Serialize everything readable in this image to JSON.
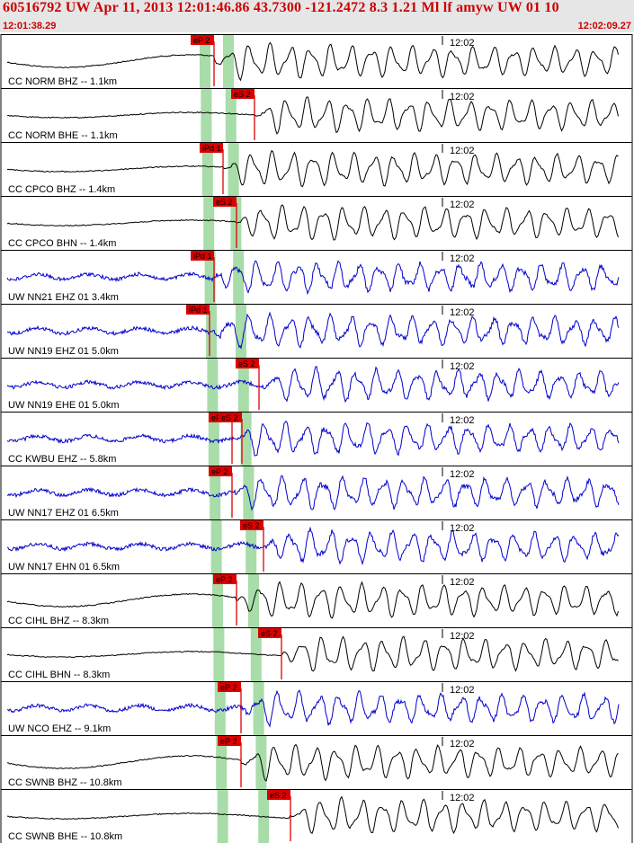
{
  "header": {
    "title": "60516792 UW Apr 11, 2013 12:01:46.86   43.7300 -121.2472  8.3 1.21 Ml lf amyw UW 01  10",
    "time_start": "12:01:38.29",
    "time_end": "12:02:09.27"
  },
  "colors": {
    "header_bg": "#e6e6e6",
    "header_text": "#cc0000",
    "trace_black": "#000000",
    "trace_blue": "#0000cc",
    "pick": "#dd0000",
    "window": "#a8dca8"
  },
  "chart_data": {
    "type": "line",
    "title": "60516792 UW Apr 11, 2013 12:01:46.86",
    "x_range": [
      "12:01:38.29",
      "12:02:09.27"
    ],
    "minute_mark": "12:02",
    "traces": [
      {
        "label": "CC NORM BHZ -- 1.1km",
        "color": "black",
        "amp": 0.45,
        "picks": [
          {
            "label": "eP 2",
            "t": 2.1
          }
        ],
        "onset": 2.1
      },
      {
        "label": "CC NORM BHE -- 1.1km",
        "color": "black",
        "amp": 0.2,
        "picks": [
          {
            "label": "eS 2",
            "t": 2.55
          }
        ],
        "onset": 2.55
      },
      {
        "label": "CC CPCO BHZ -- 1.4km",
        "color": "black",
        "amp": 0.15,
        "picks": [
          {
            "label": "iPd 1",
            "t": 2.2
          }
        ],
        "onset": 2.2
      },
      {
        "label": "CC CPCO BHN -- 1.4km",
        "color": "black",
        "amp": 0.15,
        "picks": [
          {
            "label": "eS 2",
            "t": 2.35
          }
        ],
        "onset": 2.35
      },
      {
        "label": "UW NN21 EHZ 01 3.4km",
        "color": "blue",
        "amp": 0.1,
        "picks": [
          {
            "label": "iPd 1",
            "t": 2.1
          }
        ],
        "onset": 2.1
      },
      {
        "label": "UW NN19 EHZ 01 5.0km",
        "color": "blue",
        "amp": 0.1,
        "picks": [
          {
            "label": "iPd 1",
            "t": 2.05
          }
        ],
        "onset": 2.05
      },
      {
        "label": "UW NN19 EHE 01 5.0km",
        "color": "blue",
        "amp": 0.12,
        "picks": [
          {
            "label": "eS 2",
            "t": 2.6
          }
        ],
        "onset": 2.6
      },
      {
        "label": "CC KWBU EHZ -- 5.8km",
        "color": "blue",
        "amp": 0.15,
        "picks": [
          {
            "label": "eP 2",
            "t": 2.3
          },
          {
            "label": "eS 2",
            "t": 2.6
          }
        ],
        "onset": 2.3
      },
      {
        "label": "UW NN17 EHZ 01 6.5km",
        "color": "blue",
        "amp": 0.15,
        "picks": [
          {
            "label": "eP 2",
            "t": 2.3
          }
        ],
        "onset": 2.3
      },
      {
        "label": "UW NN17 EHN 01 6.5km",
        "color": "blue",
        "amp": 0.15,
        "picks": [
          {
            "label": "eS 2",
            "t": 2.65
          }
        ],
        "onset": 2.65
      },
      {
        "label": "CC CIHL BHZ -- 8.3km",
        "color": "black",
        "amp": 0.45,
        "picks": [
          {
            "label": "eP 2",
            "t": 2.35
          }
        ],
        "onset": 2.35
      },
      {
        "label": "CC CIHL BHN -- 8.3km",
        "color": "black",
        "amp": 0.15,
        "picks": [
          {
            "label": "eS 2",
            "t": 2.85
          }
        ],
        "onset": 2.85
      },
      {
        "label": "UW NCO EHZ -- 9.1km",
        "color": "blue",
        "amp": 0.25,
        "picks": [
          {
            "label": "eP 2",
            "t": 2.4
          }
        ],
        "onset": 2.4
      },
      {
        "label": "CC SWNB BHZ -- 10.8km",
        "color": "black",
        "amp": 0.45,
        "picks": [
          {
            "label": "eP 2",
            "t": 2.4
          }
        ],
        "onset": 2.4
      },
      {
        "label": "CC SWNB BHE -- 10.8km",
        "color": "black",
        "amp": 0.2,
        "picks": [
          {
            "label": "eS 2",
            "t": 2.95
          }
        ],
        "onset": 2.95
      }
    ]
  }
}
